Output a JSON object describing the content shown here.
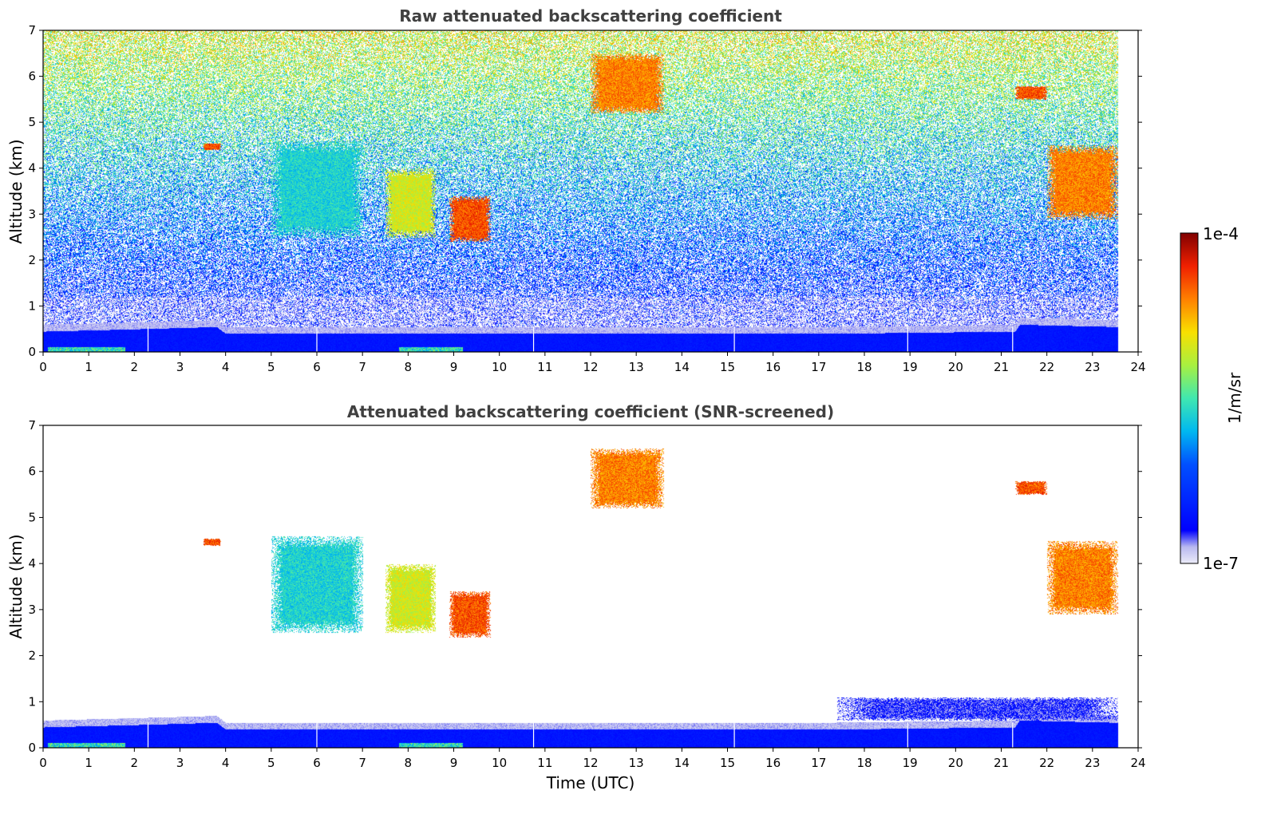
{
  "chart_data": [
    {
      "type": "heatmap",
      "title": "Raw attenuated backscattering coefficient",
      "xlabel": "",
      "ylabel": "Altitude (km)",
      "xlim": [
        0,
        24
      ],
      "ylim": [
        0,
        7
      ],
      "xticks": [
        "0",
        "1",
        "2",
        "3",
        "4",
        "5",
        "6",
        "7",
        "8",
        "9",
        "10",
        "11",
        "12",
        "13",
        "14",
        "15",
        "16",
        "17",
        "18",
        "19",
        "20",
        "21",
        "22",
        "23",
        "24"
      ],
      "yticks": [
        "0",
        "1",
        "2",
        "3",
        "4",
        "5",
        "6",
        "7"
      ],
      "data_end_time": 23.55,
      "gap_lines": [
        2.3,
        6.0,
        10.75,
        15.15,
        18.95,
        21.25
      ],
      "surface_layer_top_km": [
        [
          0,
          0.45
        ],
        [
          2,
          0.5
        ],
        [
          3.8,
          0.55
        ],
        [
          4,
          0.4
        ],
        [
          17,
          0.4
        ],
        [
          21.3,
          0.45
        ],
        [
          21.4,
          0.6
        ],
        [
          23.55,
          0.55
        ]
      ],
      "noise": true,
      "features": [
        {
          "name": "cirrus band",
          "t": [
            5.0,
            7.0
          ],
          "alt_km": [
            2.5,
            4.6
          ],
          "level": "0.45"
        },
        {
          "name": "fallstreak 8h",
          "t": [
            7.5,
            8.6
          ],
          "alt_km": [
            2.5,
            4.0
          ],
          "level": "0.65"
        },
        {
          "name": "fallstreak 9h",
          "t": [
            8.9,
            9.8
          ],
          "alt_km": [
            2.4,
            3.4
          ],
          "level": "0.85"
        },
        {
          "name": "upper cloud 12-13h",
          "t": [
            12.0,
            13.6
          ],
          "alt_km": [
            5.2,
            6.5
          ],
          "level": "0.8"
        },
        {
          "name": "evening cloud",
          "t": [
            22.0,
            23.55
          ],
          "alt_km": [
            2.9,
            4.5
          ],
          "level": "0.8"
        },
        {
          "name": "evening upper cloud",
          "t": [
            21.3,
            22.0
          ],
          "alt_km": [
            5.5,
            5.8
          ],
          "level": "0.85"
        },
        {
          "name": "small patch 3.5h",
          "t": [
            3.5,
            3.9
          ],
          "alt_km": [
            4.4,
            4.55
          ],
          "level": "0.85"
        }
      ]
    },
    {
      "type": "heatmap",
      "title": "Attenuated backscattering coefficient (SNR-screened)",
      "xlabel": "Time (UTC)",
      "ylabel": "Altitude (km)",
      "xlim": [
        0,
        24
      ],
      "ylim": [
        0,
        7
      ],
      "xticks": [
        "0",
        "1",
        "2",
        "3",
        "4",
        "5",
        "6",
        "7",
        "8",
        "9",
        "10",
        "11",
        "12",
        "13",
        "14",
        "15",
        "16",
        "17",
        "18",
        "19",
        "20",
        "21",
        "22",
        "23",
        "24"
      ],
      "yticks": [
        "0",
        "1",
        "2",
        "3",
        "4",
        "5",
        "6",
        "7"
      ],
      "data_end_time": 23.55,
      "gap_lines": [
        2.3,
        6.0,
        10.75,
        15.15,
        18.95,
        21.25
      ],
      "surface_layer_top_km": [
        [
          0,
          0.45
        ],
        [
          2,
          0.5
        ],
        [
          3.8,
          0.55
        ],
        [
          4,
          0.4
        ],
        [
          17,
          0.4
        ],
        [
          21.3,
          0.45
        ],
        [
          21.4,
          0.6
        ],
        [
          23.55,
          0.55
        ]
      ],
      "noise": false,
      "features": [
        {
          "name": "cirrus band",
          "t": [
            5.0,
            7.0
          ],
          "alt_km": [
            2.5,
            4.6
          ],
          "level": "0.45"
        },
        {
          "name": "fallstreak 8h",
          "t": [
            7.5,
            8.6
          ],
          "alt_km": [
            2.5,
            4.0
          ],
          "level": "0.65"
        },
        {
          "name": "fallstreak 9h",
          "t": [
            8.9,
            9.8
          ],
          "alt_km": [
            2.4,
            3.4
          ],
          "level": "0.85"
        },
        {
          "name": "upper cloud 12-13h",
          "t": [
            12.0,
            13.6
          ],
          "alt_km": [
            5.2,
            6.5
          ],
          "level": "0.8"
        },
        {
          "name": "evening cloud",
          "t": [
            22.0,
            23.55
          ],
          "alt_km": [
            2.9,
            4.5
          ],
          "level": "0.8"
        },
        {
          "name": "evening upper cloud",
          "t": [
            21.3,
            22.0
          ],
          "alt_km": [
            5.5,
            5.8
          ],
          "level": "0.85"
        },
        {
          "name": "small patch 3.5h",
          "t": [
            3.5,
            3.9
          ],
          "alt_km": [
            4.4,
            4.55
          ],
          "level": "0.85"
        },
        {
          "name": "boundary layer top 17-23h",
          "t": [
            17.4,
            23.55
          ],
          "alt_km": [
            0.6,
            1.1
          ],
          "level": "0.1"
        }
      ]
    }
  ],
  "colorbar": {
    "label": "1/m/sr",
    "max_label": "1e-4",
    "min_label": "1e-7",
    "colormap": "jet"
  }
}
